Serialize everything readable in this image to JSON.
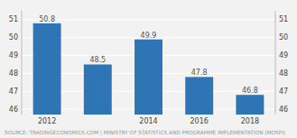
{
  "chart_data": {
    "type": "bar",
    "categories": [
      "2012",
      null,
      "2014",
      "2016",
      "2018"
    ],
    "values": [
      50.8,
      48.5,
      49.9,
      47.8,
      46.8
    ],
    "color": "#2e75b6",
    "ylim": [
      45.7,
      51.5
    ],
    "yticks": [
      46,
      47,
      48,
      49,
      50,
      51
    ],
    "y2lim": [
      45.7,
      51.5
    ],
    "y2ticks": [
      46,
      47,
      48,
      49,
      50,
      51
    ],
    "grid": true,
    "data_labels": true,
    "annotations": [
      "SOURCE: TRADINGECONOMICS.COM | MINISTRY OF STATISTICS AND PROGRAMME IMPLEMENTATION (MOSPI)"
    ]
  }
}
